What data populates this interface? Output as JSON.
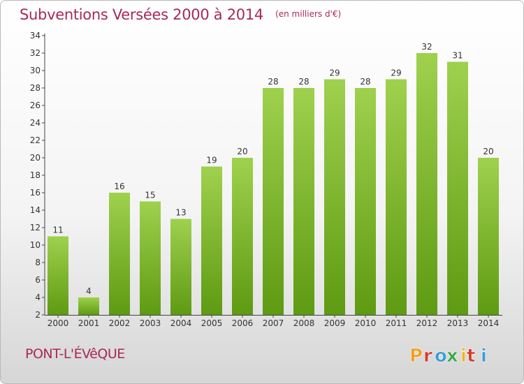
{
  "header": {
    "title": "Subventions Versées 2000 à 2014",
    "subtitle": "(en milliers d'€)"
  },
  "footer": {
    "place": "PONT-L'ÉVêQUE",
    "logo_text": "Proxiti"
  },
  "colors": {
    "accent": "#a8285a",
    "bar_top": "#9fd14e",
    "bar_bottom": "#5e9a12",
    "logo_letters": [
      "#f0a020",
      "#d23c2c",
      "#3a9bd5",
      "#3aa64a",
      "#e8b420",
      "#d23c2c",
      "#3a9bd5"
    ]
  },
  "chart_data": {
    "type": "bar",
    "categories": [
      "2000",
      "2001",
      "2002",
      "2003",
      "2004",
      "2005",
      "2006",
      "2007",
      "2008",
      "2009",
      "2010",
      "2011",
      "2012",
      "2013",
      "2014"
    ],
    "values": [
      11,
      4,
      16,
      15,
      13,
      19,
      20,
      28,
      28,
      29,
      28,
      29,
      32,
      31,
      20
    ],
    "ylim": [
      2,
      34
    ],
    "yticks": [
      2,
      4,
      6,
      8,
      10,
      12,
      14,
      16,
      18,
      20,
      22,
      24,
      26,
      28,
      30,
      32,
      34
    ],
    "grid": false,
    "legend": "none",
    "title": "Subventions Versées 2000 à 2014",
    "xlabel": "",
    "ylabel": ""
  }
}
